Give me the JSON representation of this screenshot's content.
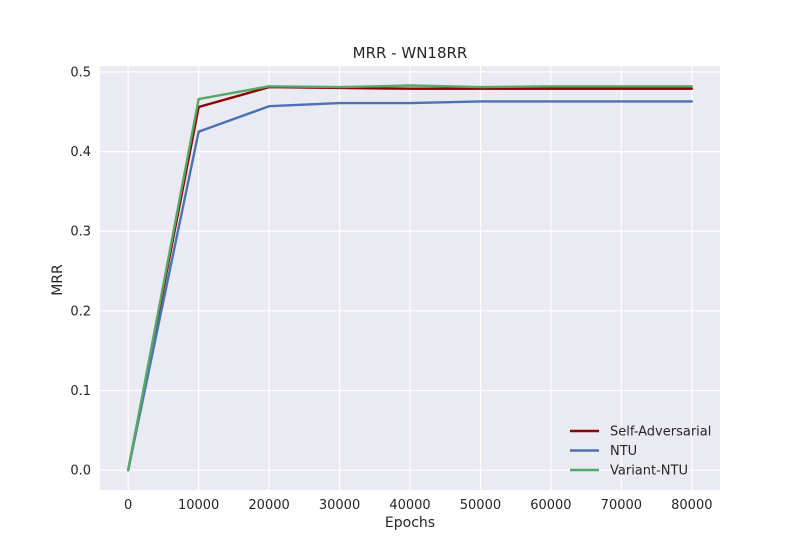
{
  "chart_data": {
    "type": "line",
    "title": "MRR - WN18RR",
    "xlabel": "Epochs",
    "ylabel": "MRR",
    "x": [
      0,
      10000,
      20000,
      30000,
      40000,
      50000,
      60000,
      70000,
      80000
    ],
    "xlim": [
      -4000,
      84000
    ],
    "ylim": [
      -0.025,
      0.5075
    ],
    "xticks": [
      0,
      10000,
      20000,
      30000,
      40000,
      50000,
      60000,
      70000,
      80000
    ],
    "yticks": [
      0.0,
      0.1,
      0.2,
      0.3,
      0.4,
      0.5
    ],
    "xtick_labels": [
      "0",
      "10000",
      "20000",
      "30000",
      "40000",
      "50000",
      "60000",
      "70000",
      "80000"
    ],
    "ytick_labels": [
      "0.0",
      "0.1",
      "0.2",
      "0.3",
      "0.4",
      "0.5"
    ],
    "grid": true,
    "legend_position": "lower-right",
    "background_color": "#eaeaf2",
    "series": [
      {
        "name": "Self-Adversarial",
        "color": "#8b0000",
        "values": [
          0.0,
          0.456,
          0.481,
          0.48,
          0.479,
          0.479,
          0.479,
          0.479,
          0.479
        ]
      },
      {
        "name": "NTU",
        "color": "#4c72b0",
        "values": [
          0.0,
          0.425,
          0.457,
          0.461,
          0.461,
          0.463,
          0.463,
          0.463,
          0.463
        ]
      },
      {
        "name": "Variant-NTU",
        "color": "#55a868",
        "values": [
          0.0,
          0.466,
          0.482,
          0.481,
          0.483,
          0.481,
          0.482,
          0.482,
          0.482
        ]
      }
    ]
  }
}
